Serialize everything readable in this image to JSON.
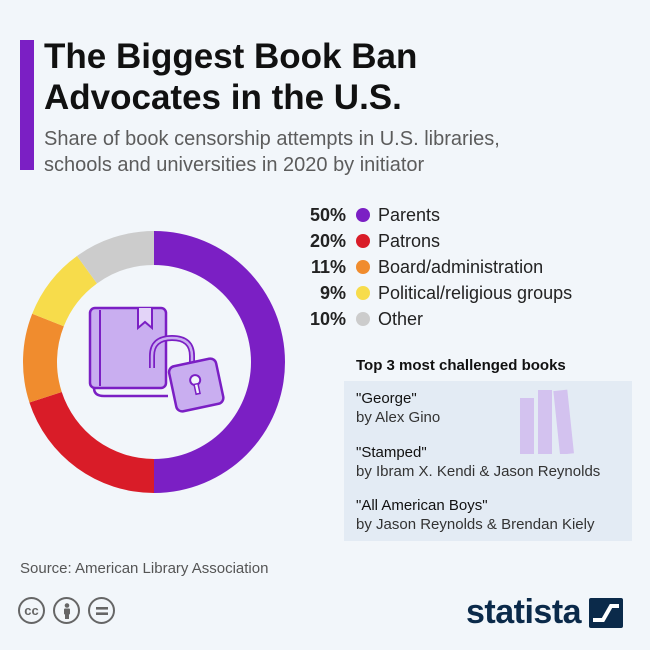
{
  "header": {
    "title_line1": "The Biggest Book Ban",
    "title_line2": "Advocates in the U.S.",
    "subtitle_line1": "Share of book censorship attempts in U.S. libraries,",
    "subtitle_line2": "schools and universities in 2020 by initiator"
  },
  "chart_data": {
    "type": "pie",
    "variant": "donut",
    "title": "The Biggest Book Ban Advocates in the U.S.",
    "subtitle": "Share of book censorship attempts in U.S. libraries, schools and universities in 2020 by initiator",
    "categories": [
      "Parents",
      "Patrons",
      "Board/administration",
      "Political/religious groups",
      "Other"
    ],
    "values": [
      50,
      20,
      11,
      9,
      10
    ],
    "unit": "%",
    "colors": [
      "#7b1fc4",
      "#d91c28",
      "#f08c2e",
      "#f7dc4b",
      "#cccccc"
    ],
    "legend_placement": "right"
  },
  "legend": [
    {
      "pct": "50%",
      "label": "Parents",
      "color": "#7b1fc4"
    },
    {
      "pct": "20%",
      "label": "Patrons",
      "color": "#d91c28"
    },
    {
      "pct": "11%",
      "label": "Board/administration",
      "color": "#f08c2e"
    },
    {
      "pct": "9%",
      "label": "Political/religious groups",
      "color": "#f7dc4b"
    },
    {
      "pct": "10%",
      "label": "Other",
      "color": "#cccccc"
    }
  ],
  "books": {
    "heading": "Top 3 most challenged books",
    "items": [
      {
        "title": "\"George\"",
        "author": "by Alex Gino"
      },
      {
        "title": "\"Stamped\"",
        "author": "by Ibram X. Kendi & Jason Reynolds"
      },
      {
        "title": "\"All American Boys\"",
        "author": "by Jason Reynolds & Brendan Kiely"
      }
    ]
  },
  "footer": {
    "source": "Source: American Library Association",
    "brand": "statista",
    "license_icons": [
      "cc-icon",
      "by-icon",
      "nd-icon"
    ]
  },
  "illustration": {
    "icon": "book-with-padlock-icon",
    "books_icon": "books-shelf-icon",
    "color": "#c9aef0"
  }
}
